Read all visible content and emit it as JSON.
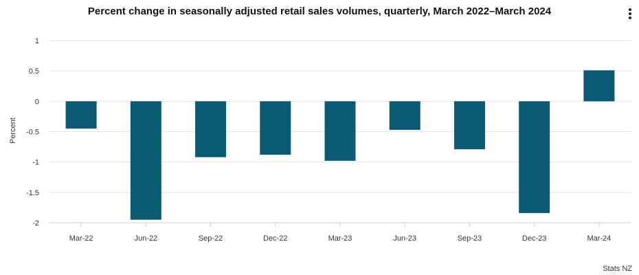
{
  "chart_data": {
    "type": "bar",
    "title": "Percent change in seasonally adjusted retail sales volumes, quarterly, March 2022–March 2024",
    "xlabel": "",
    "ylabel": "Percent",
    "ylim": [
      -2,
      1
    ],
    "yticks": [
      "1",
      "0.5",
      "0",
      "-0.5",
      "-1",
      "-1.5",
      "-2"
    ],
    "ytick_values": [
      1,
      0.5,
      0,
      -0.5,
      -1,
      -1.5,
      -2
    ],
    "categories": [
      "Mar-22",
      "Jun-22",
      "Sep-22",
      "Dec-22",
      "Mar-23",
      "Jun-23",
      "Sep-23",
      "Dec-23",
      "Mar-24"
    ],
    "values": [
      -0.45,
      -1.95,
      -0.92,
      -0.88,
      -0.98,
      -0.47,
      -0.79,
      -1.84,
      0.51
    ],
    "bar_color": "#0a5a73",
    "grid": true,
    "legend": "none",
    "credit": "Stats NZ"
  },
  "menu": {
    "icon": "kebab-menu-icon"
  }
}
